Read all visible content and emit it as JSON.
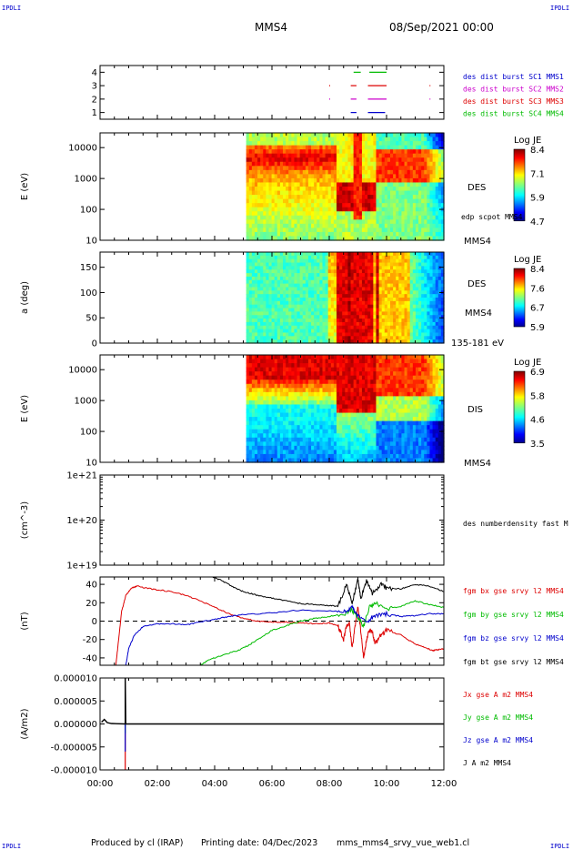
{
  "header": {
    "corner_tl": "IPDLI",
    "corner_tr": "IPDLI",
    "corner_bl": "IPDLI",
    "corner_br": "IPDLI",
    "spacecraft": "MMS4",
    "date": "08/Sep/2021 00:00"
  },
  "footer": {
    "produced_by": "Produced by cl (IRAP)",
    "printing_date": "Printing date: 04/Dec/2023",
    "file": "mms_mms4_srvy_vue_web1.cl"
  },
  "colors": {
    "blue": "#0000cc",
    "magenta": "#cc00cc",
    "red": "#dd0000",
    "green": "#00bb00",
    "black": "#000000"
  },
  "chart_data": [
    {
      "type": "timeline",
      "id": "burst",
      "yticks": [
        "1",
        "2",
        "3",
        "4"
      ],
      "ylim": [
        0.5,
        4.5
      ],
      "series": [
        {
          "name": "des dist burst SC1 MMS1",
          "color": "#0000cc",
          "level": 1,
          "intervals": [
            [
              8.75,
              8.95
            ],
            [
              9.35,
              9.95
            ]
          ]
        },
        {
          "name": "des dist burst SC2 MMS2",
          "color": "#cc00cc",
          "level": 2,
          "intervals": [
            [
              8.0,
              8.02
            ],
            [
              8.75,
              8.95
            ],
            [
              9.35,
              10.0
            ],
            [
              11.5,
              11.52
            ]
          ]
        },
        {
          "name": "des dist burst SC3 MMS3",
          "color": "#dd0000",
          "level": 3,
          "intervals": [
            [
              8.0,
              8.02
            ],
            [
              8.75,
              8.95
            ],
            [
              9.35,
              10.0
            ],
            [
              11.5,
              11.52
            ]
          ]
        },
        {
          "name": "des dist burst SC4 MMS4",
          "color": "#00bb00",
          "level": 4,
          "intervals": [
            [
              8.85,
              9.1
            ],
            [
              9.4,
              10.0
            ]
          ]
        }
      ]
    },
    {
      "type": "heatmap",
      "id": "des_energy",
      "ylabel": "E (eV)",
      "ylim_log": [
        10,
        30000
      ],
      "yticks": [
        "10",
        "100",
        "1000",
        "10000"
      ],
      "data_start_hours": 5.1,
      "colorbar": {
        "title": "Log JE",
        "ticks": [
          "8.4",
          "7.1",
          "5.9",
          "4.7"
        ],
        "range": [
          4.7,
          8.4
        ]
      },
      "side_labels": [
        "DES",
        "edp scpot MMS4",
        "MMS4"
      ]
    },
    {
      "type": "heatmap",
      "id": "des_pitch",
      "ylabel": "a (deg)",
      "ylim": [
        0,
        180
      ],
      "yticks": [
        "0",
        "50",
        "100",
        "150"
      ],
      "data_start_hours": 5.1,
      "colorbar": {
        "title": "Log JE",
        "ticks": [
          "8.4",
          "7.6",
          "6.7",
          "5.9"
        ],
        "range": [
          5.9,
          8.4
        ]
      },
      "side_labels": [
        "DES",
        "MMS4",
        "135-181 eV"
      ]
    },
    {
      "type": "heatmap",
      "id": "dis_energy",
      "ylabel": "E (eV)",
      "ylim_log": [
        10,
        30000
      ],
      "yticks": [
        "10",
        "100",
        "1000",
        "10000"
      ],
      "data_start_hours": 5.1,
      "colorbar": {
        "title": "Log JE",
        "ticks": [
          "6.9",
          "5.8",
          "4.6",
          "3.5"
        ],
        "range": [
          3.5,
          6.9
        ]
      },
      "side_labels": [
        "DIS",
        "MMS4"
      ]
    },
    {
      "type": "line",
      "id": "density",
      "ylabel": "(cm^-3)",
      "yticks": [
        "1e+19",
        "1e+20",
        "1e+21"
      ],
      "series": [
        {
          "name": "des numberdensity fast M",
          "color": "#000000",
          "points": []
        }
      ]
    },
    {
      "type": "line",
      "id": "fgm",
      "ylabel": "(nT)",
      "ylim": [
        -48,
        48
      ],
      "yticks": [
        "-40",
        "-20",
        "0",
        "20",
        "40"
      ],
      "zero_line": true,
      "series": [
        {
          "name": "fgm bx gse srvy l2 MMS4",
          "color": "#dd0000",
          "points": [
            [
              0.55,
              -48
            ],
            [
              0.65,
              -20
            ],
            [
              0.75,
              10
            ],
            [
              0.9,
              28
            ],
            [
              1.1,
              36
            ],
            [
              1.3,
              38
            ],
            [
              1.6,
              36
            ],
            [
              2.0,
              34
            ],
            [
              2.5,
              32
            ],
            [
              3.0,
              28
            ],
            [
              3.5,
              22
            ],
            [
              4.0,
              15
            ],
            [
              4.5,
              8
            ],
            [
              5.0,
              3
            ],
            [
              5.5,
              0
            ],
            [
              6.0,
              -1
            ],
            [
              6.5,
              -1
            ],
            [
              7.0,
              -2
            ],
            [
              7.5,
              -3
            ],
            [
              8.0,
              -2
            ],
            [
              8.3,
              -5
            ],
            [
              8.5,
              -20
            ],
            [
              8.6,
              -5
            ],
            [
              8.7,
              -3
            ],
            [
              8.8,
              -30
            ],
            [
              8.9,
              -5
            ],
            [
              9.0,
              15
            ],
            [
              9.1,
              -10
            ],
            [
              9.2,
              -40
            ],
            [
              9.3,
              -20
            ],
            [
              9.4,
              -10
            ],
            [
              9.5,
              -12
            ],
            [
              9.6,
              -25
            ],
            [
              9.8,
              -15
            ],
            [
              10.0,
              -10
            ],
            [
              10.5,
              -15
            ],
            [
              11.0,
              -25
            ],
            [
              11.3,
              -28
            ],
            [
              11.6,
              -32
            ],
            [
              11.8,
              -31
            ],
            [
              12.0,
              -30
            ]
          ]
        },
        {
          "name": "fgm by gse srvy l2 MMS4",
          "color": "#00bb00",
          "points": [
            [
              3.5,
              -48
            ],
            [
              3.8,
              -42
            ],
            [
              4.2,
              -38
            ],
            [
              4.8,
              -32
            ],
            [
              5.2,
              -26
            ],
            [
              5.6,
              -18
            ],
            [
              6.0,
              -10
            ],
            [
              6.5,
              -5
            ],
            [
              7.0,
              0
            ],
            [
              7.5,
              3
            ],
            [
              8.0,
              5
            ],
            [
              8.5,
              8
            ],
            [
              8.8,
              12
            ],
            [
              9.0,
              3
            ],
            [
              9.2,
              -5
            ],
            [
              9.4,
              15
            ],
            [
              9.6,
              20
            ],
            [
              10.0,
              13
            ],
            [
              10.5,
              16
            ],
            [
              11.0,
              22
            ],
            [
              11.5,
              18
            ],
            [
              12.0,
              15
            ]
          ]
        },
        {
          "name": "fgm bz gse srvy l2 MMS4",
          "color": "#0000cc",
          "points": [
            [
              0.9,
              -48
            ],
            [
              1.0,
              -30
            ],
            [
              1.2,
              -15
            ],
            [
              1.5,
              -6
            ],
            [
              2.0,
              -3
            ],
            [
              2.5,
              -3
            ],
            [
              3.0,
              -4
            ],
            [
              3.5,
              -1
            ],
            [
              4.0,
              2
            ],
            [
              4.5,
              5
            ],
            [
              5.0,
              7
            ],
            [
              6.0,
              9
            ],
            [
              7.0,
              12
            ],
            [
              8.0,
              11
            ],
            [
              8.5,
              10
            ],
            [
              8.8,
              15
            ],
            [
              9.0,
              5
            ],
            [
              9.3,
              0
            ],
            [
              9.6,
              5
            ],
            [
              10.0,
              8
            ],
            [
              10.5,
              5
            ],
            [
              11.0,
              6
            ],
            [
              11.5,
              8
            ],
            [
              12.0,
              8
            ]
          ]
        },
        {
          "name": "fgm bt gse srvy l2 MMS4",
          "color": "#000000",
          "points": [
            [
              3.9,
              48
            ],
            [
              4.2,
              45
            ],
            [
              4.6,
              38
            ],
            [
              5.0,
              32
            ],
            [
              5.5,
              28
            ],
            [
              6.0,
              25
            ],
            [
              6.5,
              22
            ],
            [
              7.0,
              19
            ],
            [
              7.5,
              18
            ],
            [
              8.0,
              17
            ],
            [
              8.3,
              16
            ],
            [
              8.6,
              40
            ],
            [
              8.8,
              20
            ],
            [
              9.0,
              46
            ],
            [
              9.1,
              25
            ],
            [
              9.3,
              44
            ],
            [
              9.5,
              30
            ],
            [
              9.8,
              40
            ],
            [
              10.0,
              36
            ],
            [
              10.5,
              35
            ],
            [
              11.0,
              40
            ],
            [
              11.5,
              38
            ],
            [
              12.0,
              32
            ]
          ]
        }
      ]
    },
    {
      "type": "line",
      "id": "current",
      "ylabel": "(A/m2)",
      "ylim": [
        -1e-05,
        1e-05
      ],
      "yticks": [
        "-0.000010",
        "-0.000005",
        "0.000000",
        "0.000005",
        "0.000010"
      ],
      "series": [
        {
          "name": "Jx gse A m2 MMS4",
          "color": "#dd0000",
          "points": [
            [
              0.88,
              0
            ],
            [
              0.88,
              -1e-05
            ]
          ]
        },
        {
          "name": "Jy gse A m2 MMS4",
          "color": "#00bb00",
          "points": [
            [
              0.88,
              0
            ],
            [
              0.88,
              -2e-06
            ]
          ]
        },
        {
          "name": "Jz gse A m2 MMS4",
          "color": "#0000cc",
          "points": [
            [
              0.88,
              0
            ],
            [
              0.88,
              -6e-06
            ]
          ]
        },
        {
          "name": "J A m2 MMS4",
          "color": "#000000",
          "points": [
            [
              0.05,
              4e-07
            ],
            [
              0.15,
              1e-06
            ],
            [
              0.25,
              3e-07
            ],
            [
              0.4,
              1e-07
            ],
            [
              0.88,
              0
            ],
            [
              0.88,
              1e-05
            ],
            [
              0.9,
              0
            ],
            [
              12.0,
              0
            ]
          ]
        }
      ]
    }
  ],
  "time_axis": {
    "xlim_hours": [
      0,
      12
    ],
    "ticks": [
      "00:00",
      "02:00",
      "04:00",
      "06:00",
      "08:00",
      "10:00",
      "12:00"
    ]
  }
}
